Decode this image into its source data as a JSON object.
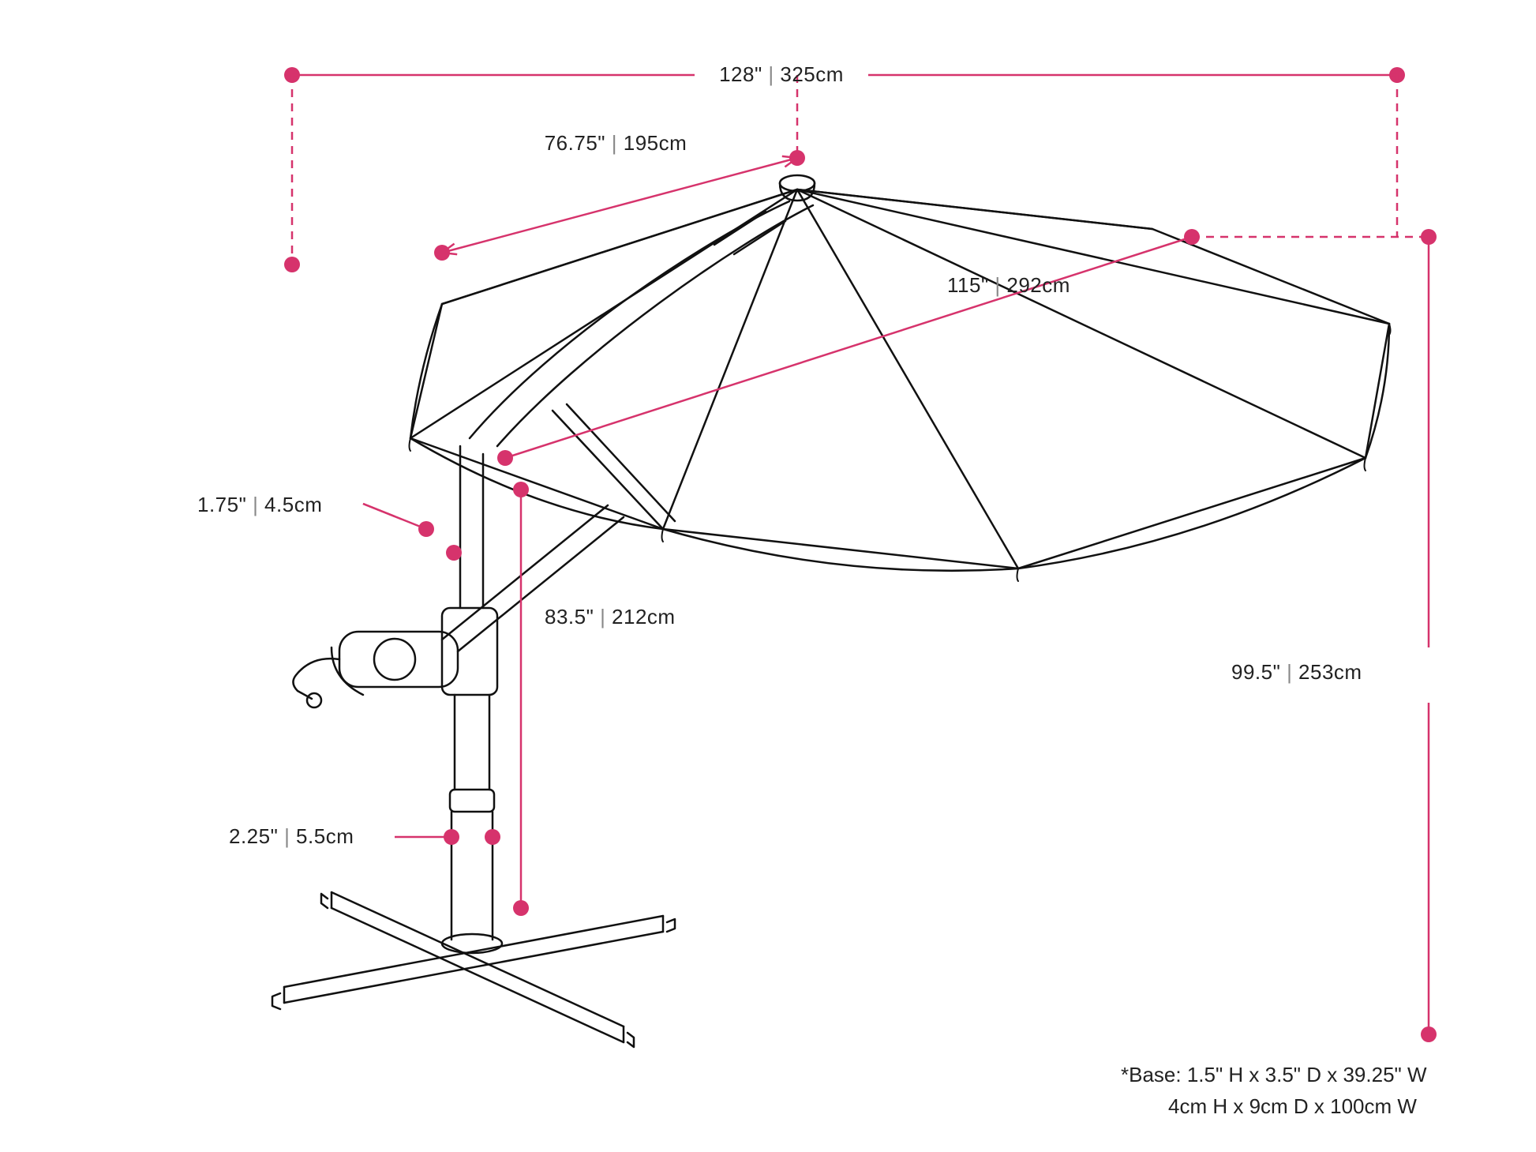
{
  "colors": {
    "accent": "#d6336c",
    "outline": "#111111",
    "text": "#222222",
    "sep": "#888888",
    "bg": "#ffffff"
  },
  "stroke": {
    "outline_w": 2.5,
    "dim_w": 2.5,
    "dash": "10 8",
    "dot_r": 10,
    "arrow_len": 18
  },
  "font": {
    "dim_size": 26,
    "note_size": 26
  },
  "dims": {
    "total_width": {
      "in": "128\"",
      "cm": "325cm"
    },
    "canopy_side": {
      "in": "76.75\"",
      "cm": "195cm"
    },
    "upper_pole": {
      "in": "1.75\"",
      "cm": "4.5cm"
    },
    "lower_pole": {
      "in": "2.25\"",
      "cm": "5.5cm"
    },
    "clearance": {
      "in": "83.5\"",
      "cm": "212cm"
    },
    "canopy_diam": {
      "in": "115\"",
      "cm": "292cm"
    },
    "total_height": {
      "in": "99.5\"",
      "cm": "253cm"
    }
  },
  "base_note": {
    "prefix": "*Base: ",
    "imperial": "1.5\" H x 3.5\" D x 39.25\" W",
    "metric": "4cm H x 9cm D x 100cm W"
  }
}
